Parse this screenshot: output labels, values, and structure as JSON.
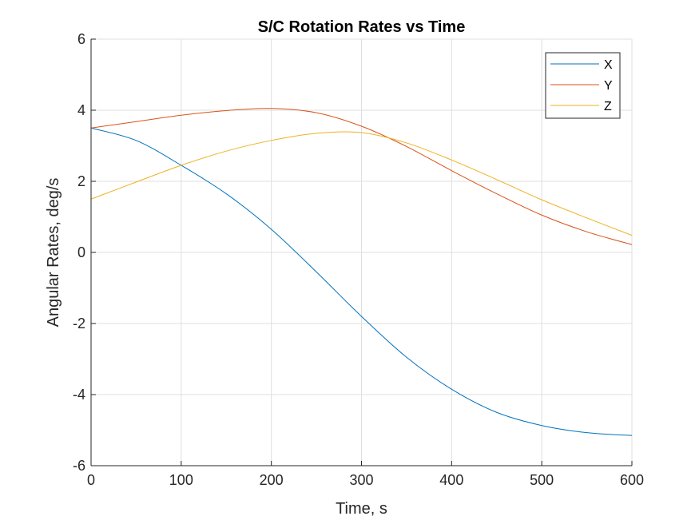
{
  "chart_data": {
    "type": "line",
    "title": "S/C Rotation Rates vs Time",
    "xlabel": "Time, s",
    "ylabel": "Angular Rates, deg/s",
    "xlim": [
      0,
      600
    ],
    "ylim": [
      -6,
      6
    ],
    "xticks": [
      0,
      100,
      200,
      300,
      400,
      500,
      600
    ],
    "yticks": [
      -6,
      -4,
      -2,
      0,
      2,
      4,
      6
    ],
    "grid": true,
    "legend_position": "top-right",
    "x": [
      0,
      50,
      100,
      150,
      200,
      250,
      300,
      350,
      400,
      450,
      500,
      550,
      600
    ],
    "series": [
      {
        "name": "X",
        "color": "#0072bd",
        "values": [
          3.5,
          3.15,
          2.45,
          1.65,
          0.65,
          -0.55,
          -1.8,
          -2.95,
          -3.85,
          -4.5,
          -4.87,
          -5.07,
          -5.15
        ]
      },
      {
        "name": "Y",
        "color": "#d95319",
        "values": [
          3.5,
          3.68,
          3.86,
          3.99,
          4.05,
          3.93,
          3.55,
          2.98,
          2.3,
          1.65,
          1.05,
          0.58,
          0.22
        ]
      },
      {
        "name": "Z",
        "color": "#edb120",
        "values": [
          1.5,
          1.98,
          2.45,
          2.85,
          3.15,
          3.35,
          3.37,
          3.08,
          2.6,
          2.05,
          1.48,
          0.97,
          0.48
        ]
      }
    ]
  }
}
